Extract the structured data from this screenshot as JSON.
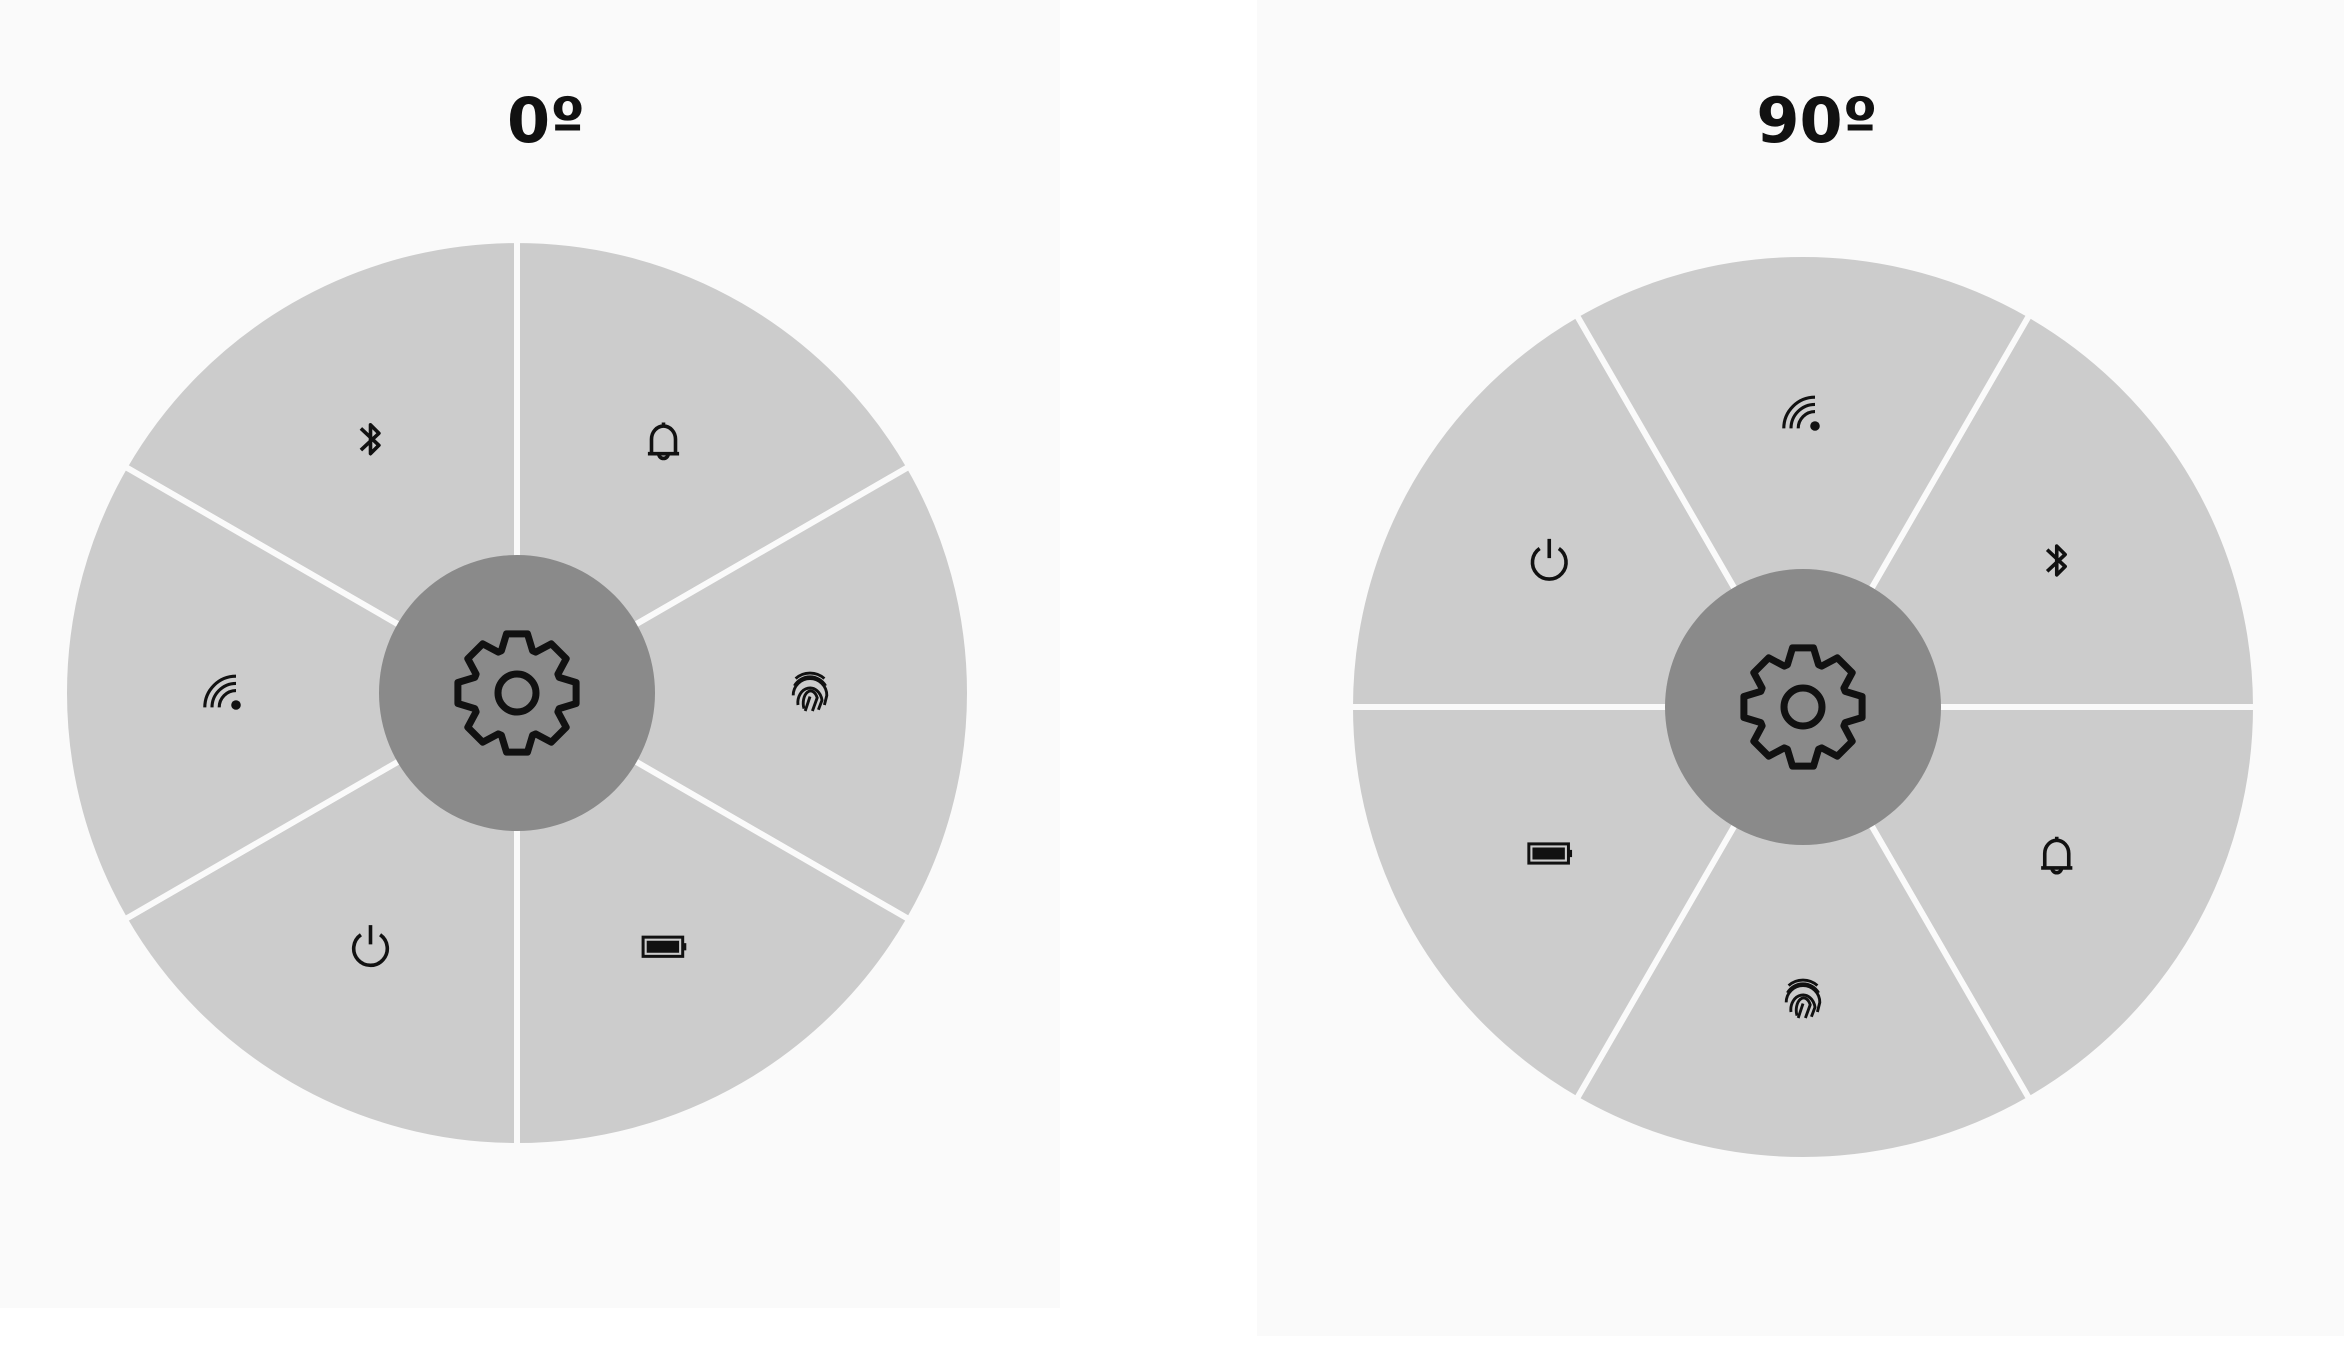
{
  "panels": [
    {
      "title": "0º"
    },
    {
      "title": "90º"
    }
  ]
}
